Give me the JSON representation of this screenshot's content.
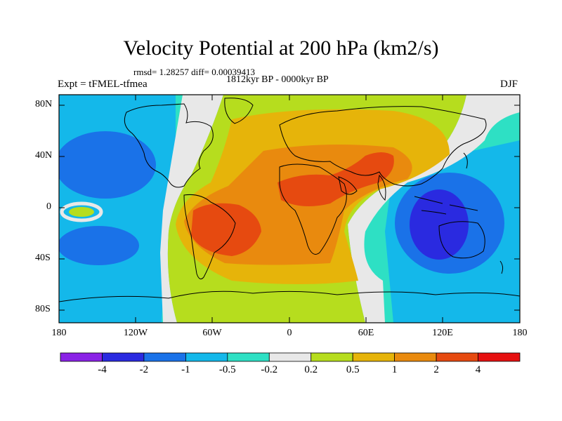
{
  "title": "Velocity Potential at 200 hPa (km2/s)",
  "stats": "rmsd= 1.28257 diff= 0.00039413",
  "period": "1812kyr BP - 0000kyr BP",
  "experiment": "Expt = tFMEL-tfmea",
  "season": "DJF",
  "axes": {
    "y_ticks": [
      "80N",
      "40N",
      "0",
      "40S",
      "80S"
    ],
    "x_ticks": [
      "180",
      "120W",
      "60W",
      "0",
      "60E",
      "120E",
      "180"
    ]
  },
  "colorbar": {
    "labels": [
      "-4",
      "-2",
      "-1",
      "-0.5",
      "-0.2",
      "0.2",
      "0.5",
      "1",
      "2",
      "4"
    ],
    "colors": [
      "#8a22e6",
      "#2a2ae0",
      "#1a72e8",
      "#14b8ea",
      "#2ee0c4",
      "#e8e8e8",
      "#b6dd1e",
      "#e6b40a",
      "#e98a0e",
      "#e64a10",
      "#e61010"
    ]
  }
}
